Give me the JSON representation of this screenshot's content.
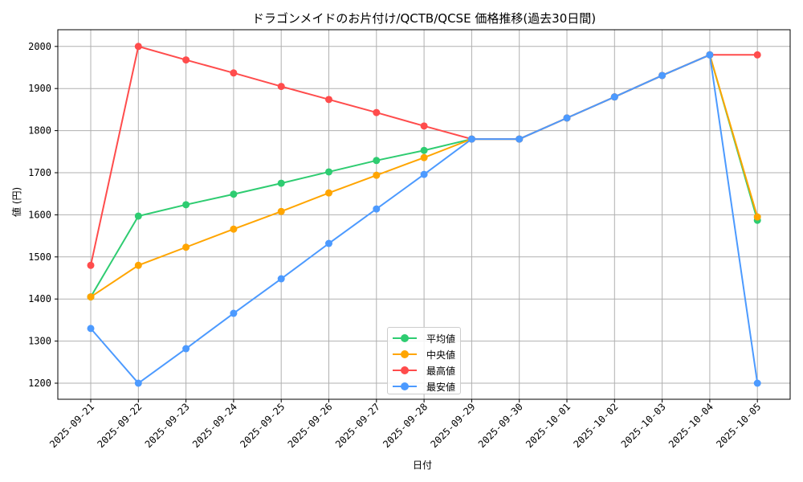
{
  "title": "ドラゴンメイドのお片付け/QCTB/QCSE 価格推移(過去30日間)",
  "xlabel": "日付",
  "ylabel": "値 (円)",
  "legend": [
    {
      "label": "平均値",
      "color": "#2ecc71"
    },
    {
      "label": "中央値",
      "color": "#ffa500"
    },
    {
      "label": "最高値",
      "color": "#ff4c4c"
    },
    {
      "label": "最安値",
      "color": "#4c9aff"
    }
  ],
  "chart_data": {
    "type": "line",
    "title": "ドラゴンメイドのお片付け/QCTB/QCSE 価格推移(過去30日間)",
    "xlabel": "日付",
    "ylabel": "値 (円)",
    "x": [
      "2025-09-21",
      "2025-09-22",
      "2025-09-23",
      "2025-09-24",
      "2025-09-25",
      "2025-09-26",
      "2025-09-27",
      "2025-09-28",
      "2025-09-29",
      "2025-09-30",
      "2025-10-01",
      "2025-10-02",
      "2025-10-03",
      "2025-10-04",
      "2025-10-05"
    ],
    "yticks": [
      1200,
      1300,
      1400,
      1500,
      1600,
      1700,
      1800,
      1900,
      2000
    ],
    "ylim": [
      1160,
      2040
    ],
    "grid": true,
    "legend_position": "lower center",
    "series": [
      {
        "name": "平均値",
        "color": "#2ecc71",
        "values": [
          1405,
          1597,
          1624,
          1649,
          1675,
          1702,
          1729,
          1753,
          1780,
          1780,
          1830,
          1880,
          1931,
          1980,
          1587
        ]
      },
      {
        "name": "中央値",
        "color": "#ffa500",
        "values": [
          1405,
          1480,
          1523,
          1566,
          1608,
          1652,
          1694,
          1736,
          1780,
          1780,
          1830,
          1880,
          1931,
          1980,
          1595
        ]
      },
      {
        "name": "最高値",
        "color": "#ff4c4c",
        "values": [
          1480,
          2000,
          1968,
          1937,
          1905,
          1874,
          1843,
          1811,
          1780,
          1780,
          1830,
          1880,
          1931,
          1980,
          1980
        ]
      },
      {
        "name": "最安値",
        "color": "#4c9aff",
        "values": [
          1330,
          1200,
          1282,
          1366,
          1448,
          1532,
          1614,
          1696,
          1780,
          1780,
          1830,
          1880,
          1931,
          1980,
          1200
        ]
      }
    ]
  }
}
